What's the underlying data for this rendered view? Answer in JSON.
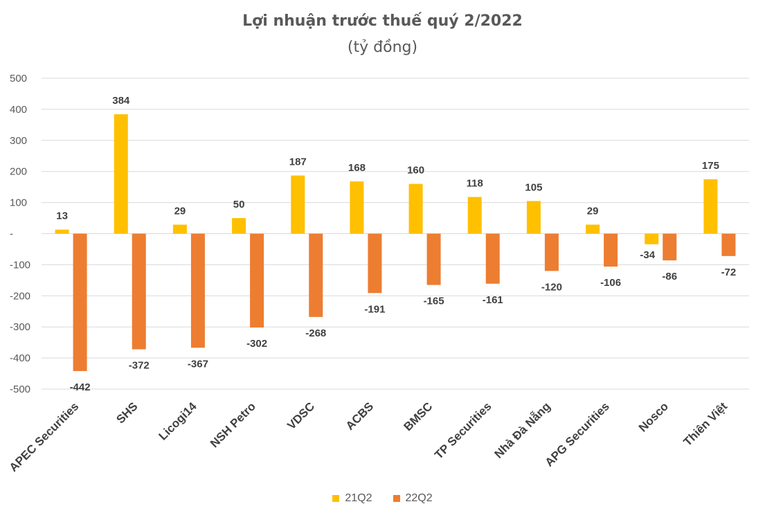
{
  "chart_data": {
    "type": "bar",
    "title": "Lợi nhuận trước thuế quý 2/2022",
    "subtitle": "(tỷ đồng)",
    "categories": [
      "APEC Securities",
      "SHS",
      "Licogi14",
      "NSH Petro",
      "VDSC",
      "ACBS",
      "BMSC",
      "TP Securities",
      "Nhà Đà Nẵng",
      "APG Securities",
      "Nosco",
      "Thiên Việt"
    ],
    "series": [
      {
        "name": "21Q2",
        "color": "#ffc000",
        "values": [
          13,
          384,
          29,
          50,
          187,
          168,
          160,
          118,
          105,
          29,
          -34,
          175
        ]
      },
      {
        "name": "22Q2",
        "color": "#ed7d31",
        "values": [
          -442,
          -372,
          -367,
          -302,
          -268,
          -191,
          -165,
          -161,
          -120,
          -106,
          -86,
          -72
        ]
      }
    ],
    "yticks": [
      "500",
      "400",
      "300",
      "200",
      "100",
      "-",
      "-100",
      "-200",
      "-300",
      "-400",
      "-500"
    ],
    "ylim": [
      -500,
      500
    ],
    "xlabel": "",
    "ylabel": "",
    "grid": true,
    "legend_position": "bottom"
  }
}
